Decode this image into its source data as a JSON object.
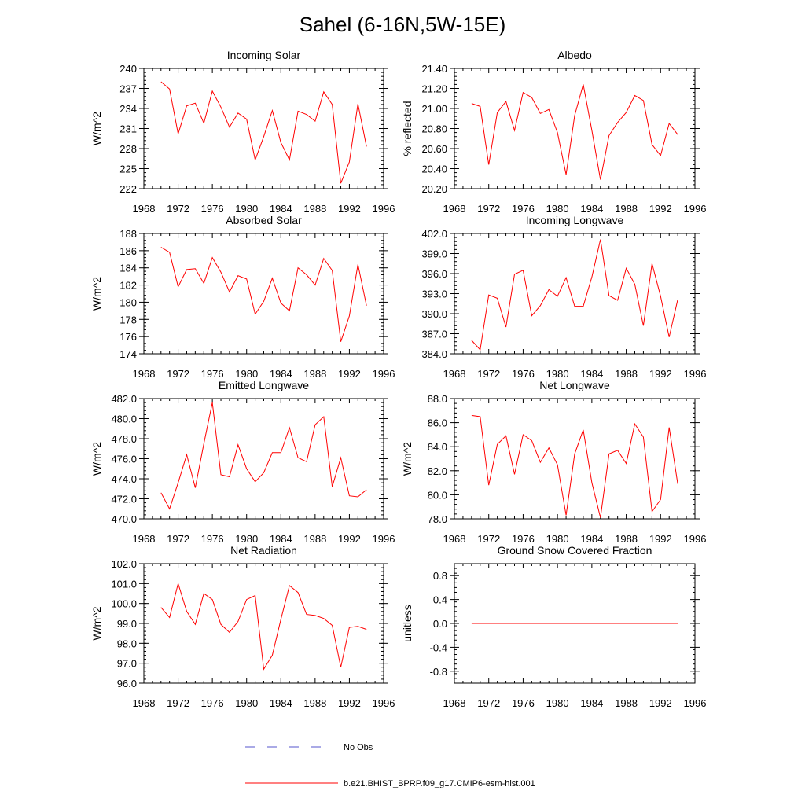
{
  "figure": {
    "title": "Sahel (6-16N,5W-15E)",
    "line_color": "#ff0000",
    "obs_color": "#5555cc"
  },
  "legend": {
    "obs_label": "No Obs",
    "model_label": "b.e21.BHIST_BPRP.f09_g17.CMIP6-esm-hist.001"
  },
  "chart_data": [
    {
      "type": "line",
      "title": "Incoming Solar",
      "ylabel": "W/m^2",
      "xlim": [
        1968,
        1996
      ],
      "ylim": [
        222,
        240
      ],
      "xticks": [
        1968,
        1972,
        1976,
        1980,
        1984,
        1988,
        1992,
        1996
      ],
      "yticks": [
        "222",
        "225",
        "228",
        "231",
        "234",
        "237",
        "240"
      ],
      "x": [
        1970,
        1971,
        1972,
        1973,
        1974,
        1975,
        1976,
        1977,
        1978,
        1979,
        1980,
        1981,
        1982,
        1983,
        1984,
        1985,
        1986,
        1987,
        1988,
        1989,
        1990,
        1991,
        1992,
        1993,
        1994
      ],
      "values": [
        238.0,
        236.9,
        230.2,
        234.4,
        234.8,
        231.8,
        236.6,
        234.2,
        231.2,
        233.3,
        232.4,
        226.3,
        229.8,
        233.7,
        228.9,
        226.3,
        233.6,
        233.1,
        232.1,
        236.5,
        234.6,
        222.8,
        226.0,
        234.7,
        228.3
      ]
    },
    {
      "type": "line",
      "title": "Albedo",
      "ylabel": "% reflected",
      "xlim": [
        1968,
        1996
      ],
      "ylim": [
        20.2,
        21.4
      ],
      "xticks": [
        1968,
        1972,
        1976,
        1980,
        1984,
        1988,
        1992,
        1996
      ],
      "yticks": [
        "20.20",
        "20.40",
        "20.60",
        "20.80",
        "21.00",
        "21.20",
        "21.40"
      ],
      "x": [
        1970,
        1971,
        1972,
        1973,
        1974,
        1975,
        1976,
        1977,
        1978,
        1979,
        1980,
        1981,
        1982,
        1983,
        1984,
        1985,
        1986,
        1987,
        1988,
        1989,
        1990,
        1991,
        1992,
        1993,
        1994
      ],
      "values": [
        21.05,
        21.02,
        20.44,
        20.96,
        21.07,
        20.78,
        21.16,
        21.11,
        20.95,
        20.99,
        20.76,
        20.34,
        20.93,
        21.24,
        20.78,
        20.29,
        20.73,
        20.86,
        20.96,
        21.13,
        21.08,
        20.64,
        20.53,
        20.85,
        20.74
      ]
    },
    {
      "type": "line",
      "title": "Absorbed Solar",
      "ylabel": "W/m^2",
      "xlim": [
        1968,
        1996
      ],
      "ylim": [
        174,
        188
      ],
      "xticks": [
        1968,
        1972,
        1976,
        1980,
        1984,
        1988,
        1992,
        1996
      ],
      "yticks": [
        "174",
        "176",
        "178",
        "180",
        "182",
        "184",
        "186",
        "188"
      ],
      "x": [
        1970,
        1971,
        1972,
        1973,
        1974,
        1975,
        1976,
        1977,
        1978,
        1979,
        1980,
        1981,
        1982,
        1983,
        1984,
        1985,
        1986,
        1987,
        1988,
        1989,
        1990,
        1991,
        1992,
        1993,
        1994
      ],
      "values": [
        186.4,
        185.8,
        181.8,
        183.8,
        183.9,
        182.2,
        185.2,
        183.5,
        181.2,
        183.1,
        182.7,
        178.6,
        180.1,
        182.8,
        179.9,
        179.0,
        184.0,
        183.2,
        182.0,
        185.1,
        183.7,
        175.4,
        178.4,
        184.4,
        179.6
      ]
    },
    {
      "type": "line",
      "title": "Incoming Longwave",
      "ylabel": "",
      "xlim": [
        1968,
        1996
      ],
      "ylim": [
        384,
        402
      ],
      "xticks": [
        1968,
        1972,
        1976,
        1980,
        1984,
        1988,
        1992,
        1996
      ],
      "yticks": [
        "384.0",
        "387.0",
        "390.0",
        "393.0",
        "396.0",
        "399.0",
        "402.0"
      ],
      "x": [
        1970,
        1971,
        1972,
        1973,
        1974,
        1975,
        1976,
        1977,
        1978,
        1979,
        1980,
        1981,
        1982,
        1983,
        1984,
        1985,
        1986,
        1987,
        1988,
        1989,
        1990,
        1991,
        1992,
        1993,
        1994
      ],
      "values": [
        386.0,
        384.6,
        392.8,
        392.3,
        388.0,
        395.9,
        396.5,
        389.7,
        391.2,
        393.6,
        392.6,
        395.4,
        391.1,
        391.1,
        395.5,
        401.1,
        392.7,
        392.0,
        396.8,
        394.4,
        388.2,
        397.5,
        392.6,
        386.5,
        392.1
      ]
    },
    {
      "type": "line",
      "title": "Emitted Longwave",
      "ylabel": "W/m^2",
      "xlim": [
        1968,
        1996
      ],
      "ylim": [
        470,
        482
      ],
      "xticks": [
        1968,
        1972,
        1976,
        1980,
        1984,
        1988,
        1992,
        1996
      ],
      "yticks": [
        "470.0",
        "472.0",
        "474.0",
        "476.0",
        "478.0",
        "480.0",
        "482.0"
      ],
      "x": [
        1970,
        1971,
        1972,
        1973,
        1974,
        1975,
        1976,
        1977,
        1978,
        1979,
        1980,
        1981,
        1982,
        1983,
        1984,
        1985,
        1986,
        1987,
        1988,
        1989,
        1990,
        1991,
        1992,
        1993,
        1994
      ],
      "values": [
        472.6,
        471.0,
        473.6,
        476.4,
        473.1,
        477.5,
        481.6,
        474.4,
        474.2,
        477.4,
        475.0,
        473.7,
        474.6,
        476.6,
        476.6,
        479.1,
        476.1,
        475.7,
        479.4,
        480.2,
        473.2,
        476.1,
        472.3,
        472.2,
        472.9
      ]
    },
    {
      "type": "line",
      "title": "Net Longwave",
      "ylabel": "W/m^2",
      "xlim": [
        1968,
        1996
      ],
      "ylim": [
        78,
        88
      ],
      "xticks": [
        1968,
        1972,
        1976,
        1980,
        1984,
        1988,
        1992,
        1996
      ],
      "yticks": [
        "78.0",
        "80.0",
        "82.0",
        "84.0",
        "86.0",
        "88.0"
      ],
      "x": [
        1970,
        1971,
        1972,
        1973,
        1974,
        1975,
        1976,
        1977,
        1978,
        1979,
        1980,
        1981,
        1982,
        1983,
        1984,
        1985,
        1986,
        1987,
        1988,
        1989,
        1990,
        1991,
        1992,
        1993,
        1994
      ],
      "values": [
        86.6,
        86.5,
        80.8,
        84.2,
        84.9,
        81.7,
        85.0,
        84.5,
        82.7,
        83.9,
        82.5,
        78.3,
        83.4,
        85.4,
        81.0,
        78.1,
        83.4,
        83.7,
        82.6,
        85.9,
        84.8,
        78.6,
        79.6,
        85.6,
        80.9
      ]
    },
    {
      "type": "line",
      "title": "Net Radiation",
      "ylabel": "W/m^2",
      "xlim": [
        1968,
        1996
      ],
      "ylim": [
        96,
        102
      ],
      "xticks": [
        1968,
        1972,
        1976,
        1980,
        1984,
        1988,
        1992,
        1996
      ],
      "yticks": [
        "96.0",
        "97.0",
        "98.0",
        "99.0",
        "100.0",
        "101.0",
        "102.0"
      ],
      "x": [
        1970,
        1971,
        1972,
        1973,
        1974,
        1975,
        1976,
        1977,
        1978,
        1979,
        1980,
        1981,
        1982,
        1983,
        1984,
        1985,
        1986,
        1987,
        1988,
        1989,
        1990,
        1991,
        1992,
        1993,
        1994
      ],
      "values": [
        99.8,
        99.3,
        101.0,
        99.6,
        98.95,
        100.5,
        100.2,
        98.95,
        98.55,
        99.1,
        100.2,
        100.4,
        96.7,
        97.4,
        99.2,
        100.9,
        100.55,
        99.45,
        99.4,
        99.25,
        98.9,
        96.8,
        98.8,
        98.85,
        98.7
      ]
    },
    {
      "type": "line",
      "title": "Ground Snow Covered Fraction",
      "ylabel": "unitless",
      "xlim": [
        1968,
        1996
      ],
      "ylim": [
        -1.0,
        1.0
      ],
      "xticks": [
        1968,
        1972,
        1976,
        1980,
        1984,
        1988,
        1992,
        1996
      ],
      "yticks": [
        "-0.8",
        "-0.4",
        "0.0",
        "0.4",
        "0.8"
      ],
      "x": [
        1970,
        1971,
        1972,
        1973,
        1974,
        1975,
        1976,
        1977,
        1978,
        1979,
        1980,
        1981,
        1982,
        1983,
        1984,
        1985,
        1986,
        1987,
        1988,
        1989,
        1990,
        1991,
        1992,
        1993,
        1994
      ],
      "values": [
        0,
        0,
        0,
        0,
        0,
        0,
        0,
        0,
        0,
        0,
        0,
        0,
        0,
        0,
        0,
        0,
        0,
        0,
        0,
        0,
        0,
        0,
        0,
        0,
        0
      ]
    }
  ]
}
